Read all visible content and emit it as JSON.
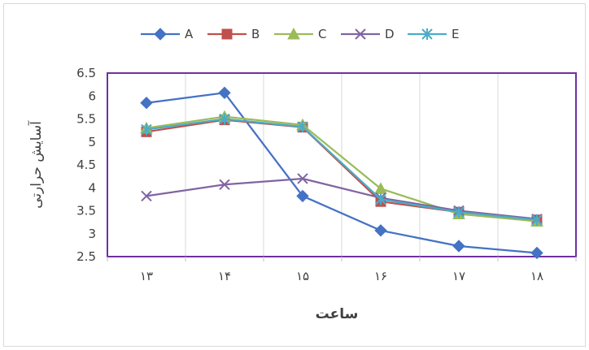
{
  "chart_data": {
    "type": "line",
    "categories": [
      "۱۳",
      "۱۴",
      "۱۵",
      "۱۶",
      "۱۷",
      "۱۸"
    ],
    "series": [
      {
        "name": "A",
        "color": "#4472c4",
        "marker": "diamond",
        "values": [
          5.85,
          6.07,
          3.82,
          3.07,
          2.73,
          2.58
        ]
      },
      {
        "name": "B",
        "color": "#c0504d",
        "marker": "square",
        "values": [
          5.22,
          5.48,
          5.32,
          3.7,
          3.47,
          3.3
        ]
      },
      {
        "name": "C",
        "color": "#9bbb59",
        "marker": "triangle",
        "values": [
          5.3,
          5.55,
          5.37,
          3.98,
          3.43,
          3.27
        ]
      },
      {
        "name": "D",
        "color": "#8064a2",
        "marker": "x",
        "values": [
          3.82,
          4.07,
          4.2,
          3.78,
          3.5,
          3.32
        ]
      },
      {
        "name": "E",
        "color": "#4bacc6",
        "marker": "star",
        "values": [
          5.27,
          5.5,
          5.33,
          3.75,
          3.47,
          3.3
        ]
      }
    ],
    "xlabel": "ساعت",
    "ylabel": "آسایش حرارتی",
    "ylim": [
      2.5,
      6.5
    ],
    "yticks": [
      "2.5",
      "3",
      "3.5",
      "4",
      "4.5",
      "5",
      "5.5",
      "6",
      "6.5"
    ],
    "grid": "vertical",
    "legend_position": "top",
    "plot_border_color": "#7030a0",
    "grid_color": "#d9d9d9"
  }
}
